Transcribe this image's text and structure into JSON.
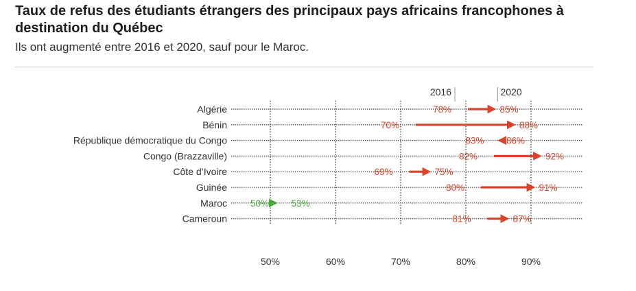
{
  "chart_data": {
    "type": "dumbbell-arrow",
    "title": "Taux de refus des étudiants étrangers des principaux pays africains francophones à destination du Québec",
    "subtitle": "Ils ont augmenté entre 2016 et 2020, sauf pour le Maroc.",
    "start_label": "2016",
    "end_label": "2020",
    "xlim": [
      44,
      98
    ],
    "xticks": [
      {
        "value": 50,
        "label": "50%"
      },
      {
        "value": 60,
        "label": "60%"
      },
      {
        "value": 70,
        "label": "70%"
      },
      {
        "value": 80,
        "label": "80%"
      },
      {
        "value": 90,
        "label": "90%"
      }
    ],
    "rows": [
      {
        "country": "Algérie",
        "v2016": 78,
        "v2020": 85,
        "label2016": "78%",
        "label2020": "85%"
      },
      {
        "country": "Bénin",
        "v2016": 70,
        "v2020": 88,
        "label2016": "70%",
        "label2020": "88%"
      },
      {
        "country": "République démocratique du Congo",
        "v2016": 83,
        "v2020": 86,
        "label2016": "83%",
        "label2020": "86%"
      },
      {
        "country": "Congo (Brazzaville)",
        "v2016": 82,
        "v2020": 92,
        "label2016": "82%",
        "label2020": "92%"
      },
      {
        "country": "Côte d’Ivoire",
        "v2016": 69,
        "v2020": 75,
        "label2016": "69%",
        "label2020": "75%"
      },
      {
        "country": "Guinée",
        "v2016": 80,
        "v2020": 91,
        "label2016": "80%",
        "label2020": "91%"
      },
      {
        "country": "Maroc",
        "v2016": 53,
        "v2020": 50,
        "label2016": "53%",
        "label2020": "50%"
      },
      {
        "country": "Cameroun",
        "v2016": 81,
        "v2020": 87,
        "label2016": "81%",
        "label2020": "87%"
      }
    ],
    "colors": {
      "increase": "#d9442a",
      "decrease": "#4aa83c",
      "dots": "#555555",
      "grid": "#222222"
    }
  }
}
